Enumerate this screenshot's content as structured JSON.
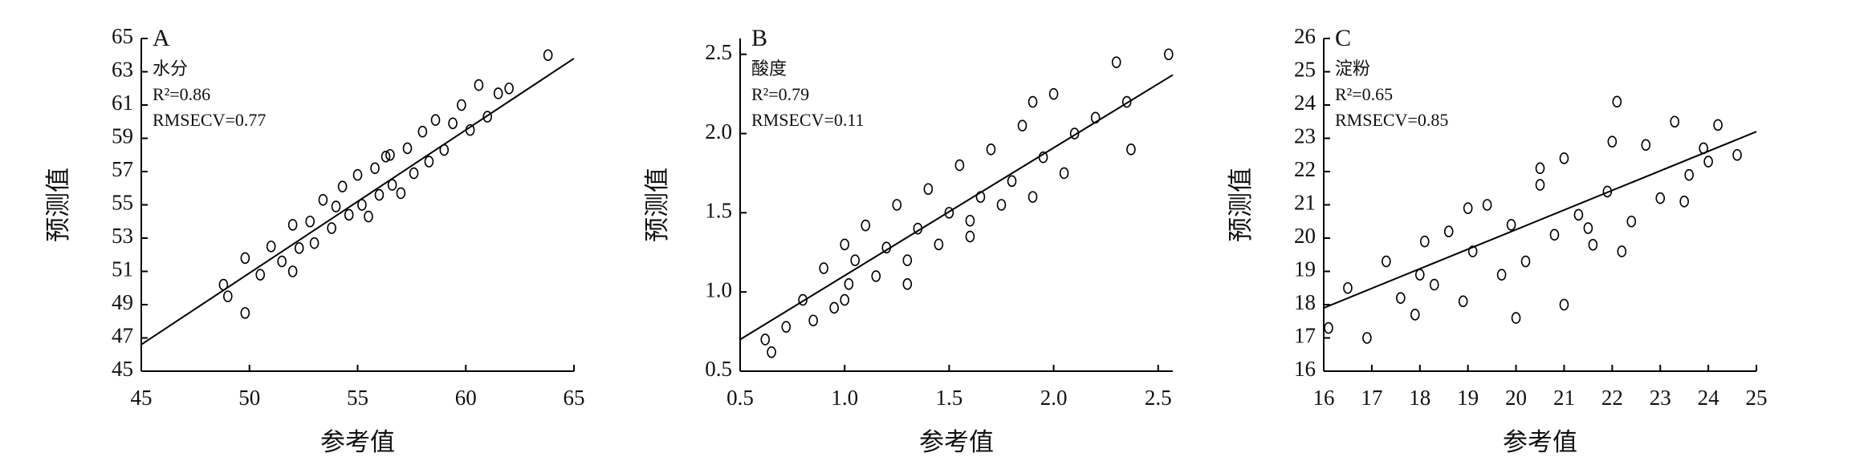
{
  "chart_data": [
    {
      "type": "scatter",
      "title": "A",
      "annotations": [
        "水分",
        "R²=0.86",
        "RMSECV=0.77"
      ],
      "x_label": "参考值",
      "y_label": "预测值",
      "xlim": [
        45,
        65
      ],
      "xticks": [
        45,
        50,
        55,
        60,
        65
      ],
      "ylim": [
        45,
        65
      ],
      "yticks": [
        45,
        47,
        49,
        51,
        53,
        55,
        57,
        59,
        61,
        63,
        65
      ],
      "color": "#000000",
      "x": [
        48.8,
        49.0,
        49.8,
        50.5,
        51.0,
        51.5,
        52.0,
        52.3,
        52.8,
        53.0,
        53.4,
        53.8,
        54.0,
        54.3,
        54.6,
        55.0,
        55.2,
        55.5,
        55.8,
        56.0,
        56.3,
        56.6,
        57.0,
        57.3,
        57.6,
        58.0,
        58.3,
        58.6,
        59.0,
        59.4,
        59.8,
        60.2,
        60.6,
        61.0,
        61.5,
        62.0,
        63.8,
        49.8,
        52.0,
        56.5
      ],
      "y": [
        50.2,
        49.5,
        48.5,
        50.8,
        52.5,
        51.6,
        53.8,
        52.4,
        54.0,
        52.7,
        55.3,
        53.6,
        54.9,
        56.1,
        54.4,
        56.8,
        55.0,
        54.3,
        57.2,
        55.6,
        57.9,
        56.2,
        55.7,
        58.4,
        56.9,
        59.4,
        57.6,
        60.1,
        58.3,
        59.9,
        61.0,
        59.5,
        62.2,
        60.3,
        61.7,
        62.0,
        64.0,
        51.8,
        51.0,
        58.0
      ],
      "fit_line": {
        "x": [
          45,
          65
        ],
        "y": [
          46.6,
          63.8
        ]
      }
    },
    {
      "type": "scatter",
      "title": "B",
      "annotations": [
        "酸度",
        "R²=0.79",
        "RMSECV=0.11"
      ],
      "x_label": "参考值",
      "y_label": "预测值",
      "xlim": [
        0.5,
        2.57
      ],
      "xticks": [
        0.5,
        {
          "value": 1,
          "label": "1.0"
        },
        1.5,
        {
          "value": 2,
          "label": "2.0"
        },
        2.5
      ],
      "ylim": [
        0.5,
        2.6
      ],
      "yticks": [
        0.5,
        {
          "value": 1,
          "label": "1.0"
        },
        1.5,
        {
          "value": 2,
          "label": "2.0"
        },
        2.5
      ],
      "color": "#000000",
      "x": [
        0.62,
        0.65,
        0.72,
        0.8,
        0.85,
        0.9,
        0.95,
        1.0,
        1.02,
        1.05,
        1.1,
        1.15,
        1.2,
        1.25,
        1.3,
        1.35,
        1.4,
        1.45,
        1.5,
        1.55,
        1.6,
        1.65,
        1.7,
        1.75,
        1.8,
        1.85,
        1.9,
        1.95,
        2.0,
        2.05,
        2.1,
        2.2,
        2.3,
        2.35,
        2.37,
        2.55,
        1.0,
        1.3,
        1.6,
        1.9
      ],
      "y": [
        0.7,
        0.62,
        0.78,
        0.95,
        0.82,
        1.15,
        0.9,
        1.3,
        1.05,
        1.2,
        1.42,
        1.1,
        1.28,
        1.55,
        1.2,
        1.4,
        1.65,
        1.3,
        1.5,
        1.8,
        1.45,
        1.6,
        1.9,
        1.55,
        1.7,
        2.05,
        1.6,
        1.85,
        2.25,
        1.75,
        2.0,
        2.1,
        2.45,
        2.2,
        1.9,
        2.5,
        0.95,
        1.05,
        1.35,
        2.2
      ],
      "fit_line": {
        "x": [
          0.5,
          2.57
        ],
        "y": [
          0.7,
          2.37
        ]
      }
    },
    {
      "type": "scatter",
      "title": "C",
      "annotations": [
        "淀粉",
        "R²=0.65",
        "RMSECV=0.85"
      ],
      "x_label": "参考值",
      "y_label": "预测值",
      "xlim": [
        16,
        25
      ],
      "xticks": [
        16,
        17,
        18,
        19,
        20,
        21,
        22,
        23,
        24,
        25
      ],
      "ylim": [
        16,
        26
      ],
      "yticks": [
        16,
        17,
        18,
        19,
        20,
        21,
        22,
        23,
        24,
        25,
        26
      ],
      "color": "#000000",
      "x": [
        16.1,
        16.5,
        16.9,
        17.3,
        17.6,
        17.9,
        18.1,
        18.3,
        18.6,
        18.9,
        19.1,
        19.4,
        19.7,
        19.9,
        20.2,
        20.5,
        20.8,
        21.0,
        21.3,
        21.6,
        21.9,
        22.1,
        22.4,
        22.7,
        23.0,
        23.3,
        23.6,
        23.9,
        24.2,
        24.6,
        19.0,
        20.0,
        21.0,
        22.0,
        21.5,
        22.2,
        20.5,
        18.0,
        23.5,
        24.0
      ],
      "y": [
        17.3,
        18.5,
        17.0,
        19.3,
        18.2,
        17.7,
        19.9,
        18.6,
        20.2,
        18.1,
        19.6,
        21.0,
        18.9,
        20.4,
        19.3,
        21.6,
        20.1,
        22.4,
        20.7,
        19.8,
        21.4,
        24.1,
        20.5,
        22.8,
        21.2,
        23.5,
        21.9,
        22.7,
        23.4,
        22.5,
        20.9,
        17.6,
        18.0,
        22.9,
        20.3,
        19.6,
        22.1,
        18.9,
        21.1,
        22.3
      ],
      "fit_line": {
        "x": [
          16,
          25
        ],
        "y": [
          17.9,
          23.2
        ]
      }
    }
  ]
}
